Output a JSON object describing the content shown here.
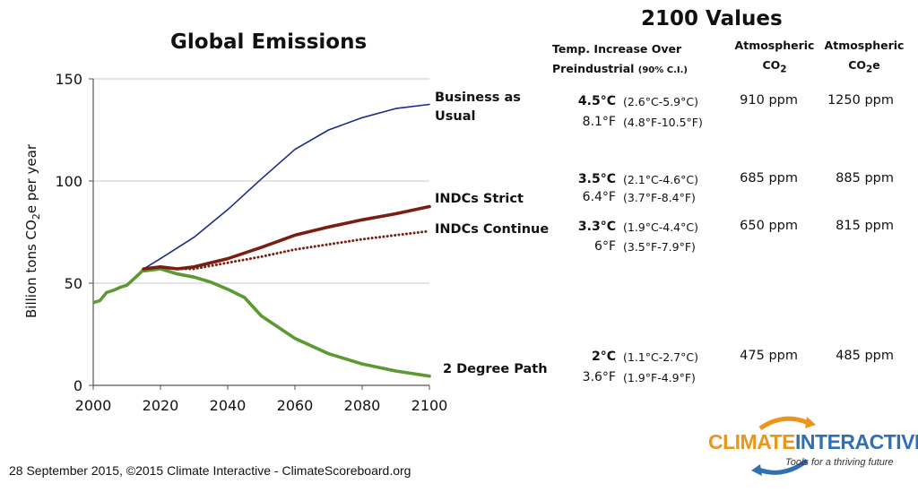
{
  "chart_data": {
    "type": "line",
    "title": "Global Emissions",
    "ylabel_parts": [
      "Billion tons CO",
      "2",
      "e per year"
    ],
    "xlim": [
      2000,
      2100
    ],
    "ylim": [
      0,
      150
    ],
    "x_ticks": [
      "2000",
      "2020",
      "2040",
      "2060",
      "2080",
      "2100"
    ],
    "y_ticks": [
      "0",
      "50",
      "100",
      "150"
    ],
    "grid": "horizontal",
    "series": [
      {
        "name": "Business as Usual",
        "color": "#1a2c87",
        "style": "solid",
        "points": [
          [
            2015,
            57
          ],
          [
            2020,
            62
          ],
          [
            2030,
            72.5
          ],
          [
            2040,
            86
          ],
          [
            2050,
            101
          ],
          [
            2060,
            115.5
          ],
          [
            2070,
            125
          ],
          [
            2080,
            131
          ],
          [
            2090,
            135.5
          ],
          [
            2100,
            137.5
          ]
        ]
      },
      {
        "name": "INDCs Strict",
        "color": "#7b1e12",
        "style": "solid",
        "points": [
          [
            2015,
            57
          ],
          [
            2020,
            58
          ],
          [
            2025,
            57
          ],
          [
            2030,
            58
          ],
          [
            2040,
            62
          ],
          [
            2050,
            67.5
          ],
          [
            2060,
            73.5
          ],
          [
            2070,
            77.5
          ],
          [
            2080,
            81
          ],
          [
            2090,
            84
          ],
          [
            2100,
            87.5
          ]
        ]
      },
      {
        "name": "INDCs Continue",
        "color": "#7b1e12",
        "style": "dotted",
        "points": [
          [
            2015,
            57
          ],
          [
            2020,
            58
          ],
          [
            2025,
            57
          ],
          [
            2030,
            57
          ],
          [
            2040,
            60
          ],
          [
            2050,
            63
          ],
          [
            2060,
            66.5
          ],
          [
            2070,
            69
          ],
          [
            2080,
            71.5
          ],
          [
            2090,
            73.5
          ],
          [
            2100,
            75.5
          ]
        ]
      },
      {
        "name": "2 Degree Path",
        "color": "#5b9a32",
        "style": "solid",
        "points": [
          [
            2015,
            56
          ],
          [
            2020,
            57
          ],
          [
            2025,
            54.5
          ],
          [
            2030,
            53
          ],
          [
            2035,
            50.5
          ],
          [
            2040,
            47
          ],
          [
            2045,
            43
          ],
          [
            2050,
            34
          ],
          [
            2060,
            23
          ],
          [
            2070,
            15.5
          ],
          [
            2080,
            10.5
          ],
          [
            2090,
            7
          ],
          [
            2100,
            4.5
          ]
        ]
      }
    ],
    "historical": {
      "color": "#5b9a32",
      "points": [
        [
          2000,
          40.5
        ],
        [
          2002,
          41.5
        ],
        [
          2004,
          45.5
        ],
        [
          2006,
          46.5
        ],
        [
          2008,
          48
        ],
        [
          2010,
          49
        ],
        [
          2012,
          52
        ],
        [
          2014,
          55
        ],
        [
          2015,
          57
        ]
      ]
    },
    "series_labels": [
      {
        "lines": [
          "Business as",
          "Usual"
        ]
      },
      {
        "lines": [
          "INDCs Strict"
        ]
      },
      {
        "lines": [
          "INDCs Continue"
        ]
      },
      {
        "lines": [
          "2 Degree Path"
        ]
      }
    ]
  },
  "values_table": {
    "title": "2100 Values",
    "headers": {
      "temp": {
        "line1": "Temp. Increase Over",
        "line2": "Preindustrial",
        "ci": "(90% C.I.)"
      },
      "co2": {
        "line1": "Atmospheric",
        "line2": "CO",
        "sub": "2"
      },
      "co2e": {
        "line1": "Atmospheric",
        "line2a": "CO",
        "sub": "2",
        "line2b": "e"
      }
    },
    "rows": [
      {
        "temp_c": "4.5°C",
        "range_c": "(2.6°C-5.9°C)",
        "temp_f": "8.1°F",
        "range_f": "(4.8°F-10.5°F)",
        "co2": "910 ppm",
        "co2e": "1250 ppm"
      },
      {
        "temp_c": "3.5°C",
        "range_c": "(2.1°C-4.6°C)",
        "temp_f": "6.4°F",
        "range_f": "(3.7°F-8.4°F)",
        "co2": "685 ppm",
        "co2e": "885 ppm"
      },
      {
        "temp_c": "3.3°C",
        "range_c": "(1.9°C-4.4°C)",
        "temp_f": "6°F",
        "range_f": "(3.5°F-7.9°F)",
        "co2": "650 ppm",
        "co2e": "815 ppm"
      },
      {
        "temp_c": "2°C",
        "range_c": "(1.1°C-2.7°C)",
        "temp_f": "3.6°F",
        "range_f": "(1.9°F-4.9°F)",
        "co2": "475 ppm",
        "co2e": "485 ppm"
      }
    ]
  },
  "footer": "28 September 2015,  ©2015 Climate Interactive - ClimateScoreboard.org",
  "logo": {
    "word1": "CLIMATE",
    "word2": "INTERACTIVE",
    "tagline": "Tools for a thriving future",
    "color_orange": "#e8961c",
    "color_blue": "#2f6fb5"
  }
}
